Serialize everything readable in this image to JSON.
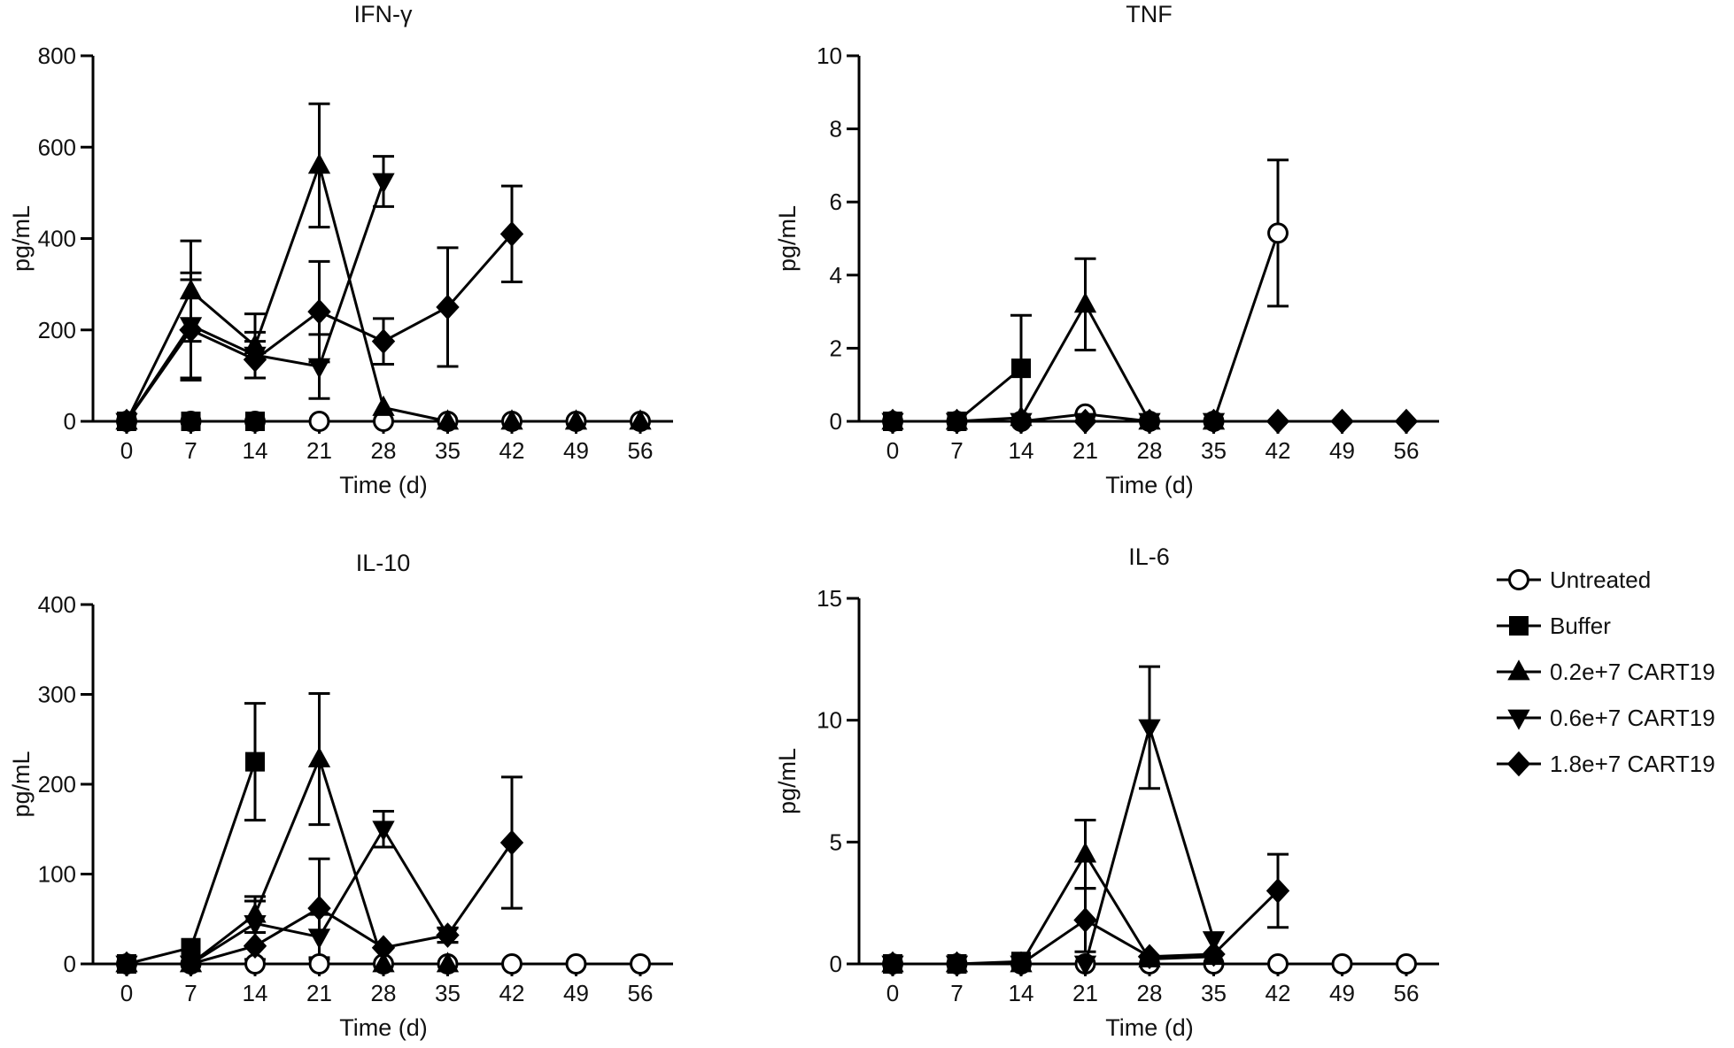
{
  "legend": [
    {
      "name": "Untreated",
      "marker": "circle-open"
    },
    {
      "name": "Buffer",
      "marker": "square"
    },
    {
      "name": "0.2e+7 CART19",
      "marker": "triangle-up"
    },
    {
      "name": "0.6e+7 CART19",
      "marker": "triangle-down"
    },
    {
      "name": "1.8e+7 CART19",
      "marker": "diamond"
    }
  ],
  "chart_data": [
    {
      "type": "line",
      "title": "IFN-γ",
      "xlabel": "Time (d)",
      "ylabel": "pg/mL",
      "xlim": [
        0,
        56
      ],
      "ylim": [
        0,
        800
      ],
      "xticks": [
        0,
        7,
        14,
        21,
        28,
        35,
        42,
        49,
        56
      ],
      "yticks": [
        0,
        200,
        400,
        600,
        800
      ],
      "series": [
        {
          "name": "Untreated",
          "x": [
            0,
            7,
            14,
            21,
            28,
            35,
            42,
            49,
            56
          ],
          "y": [
            0,
            0,
            0,
            0,
            0,
            0,
            0,
            0,
            0
          ]
        },
        {
          "name": "Buffer",
          "x": [
            0,
            7,
            14
          ],
          "y": [
            0,
            0,
            0
          ]
        },
        {
          "name": "0.2e+7 CART19",
          "x": [
            0,
            7,
            14,
            21,
            28,
            35,
            42,
            49,
            56
          ],
          "y": [
            0,
            285,
            165,
            560,
            30,
            0,
            0,
            0,
            0
          ],
          "err": [
            0,
            110,
            70,
            135,
            0,
            0,
            0,
            0,
            0
          ]
        },
        {
          "name": "0.6e+7 CART19",
          "x": [
            0,
            7,
            14,
            21,
            28
          ],
          "y": [
            0,
            210,
            145,
            120,
            525
          ],
          "err": [
            0,
            115,
            50,
            70,
            55
          ]
        },
        {
          "name": "1.8e+7 CART19",
          "x": [
            0,
            7,
            14,
            21,
            28,
            35,
            42
          ],
          "y": [
            0,
            200,
            135,
            240,
            175,
            250,
            410
          ],
          "err": [
            0,
            110,
            40,
            110,
            50,
            130,
            105
          ]
        }
      ]
    },
    {
      "type": "line",
      "title": "TNF",
      "xlabel": "Time (d)",
      "ylabel": "pg/mL",
      "xlim": [
        0,
        56
      ],
      "ylim": [
        0,
        10
      ],
      "xticks": [
        0,
        7,
        14,
        21,
        28,
        35,
        42,
        49,
        56
      ],
      "yticks": [
        0,
        2,
        4,
        6,
        8,
        10
      ],
      "series": [
        {
          "name": "Untreated",
          "x": [
            0,
            7,
            14,
            21,
            28,
            35,
            42
          ],
          "y": [
            0,
            0,
            0,
            0.2,
            0,
            0,
            5.15
          ],
          "err": [
            0,
            0,
            0,
            0,
            0,
            0,
            2
          ]
        },
        {
          "name": "Buffer",
          "x": [
            0,
            7,
            14
          ],
          "y": [
            0,
            0,
            1.45
          ],
          "err": [
            0,
            0,
            1.45
          ]
        },
        {
          "name": "0.2e+7 CART19",
          "x": [
            0,
            7,
            14,
            21,
            28,
            35
          ],
          "y": [
            0,
            0,
            0.1,
            3.2,
            0,
            0
          ],
          "err": [
            0,
            0,
            0,
            1.25,
            0,
            0
          ]
        },
        {
          "name": "0.6e+7 CART19",
          "x": [
            0,
            7,
            14,
            21,
            28,
            35
          ],
          "y": [
            0,
            0,
            0,
            0,
            0,
            0
          ]
        },
        {
          "name": "1.8e+7 CART19",
          "x": [
            0,
            7,
            14,
            21,
            28,
            35,
            42,
            49,
            56
          ],
          "y": [
            0,
            0,
            0,
            0,
            0,
            0,
            0,
            0,
            0
          ]
        }
      ]
    },
    {
      "type": "line",
      "title": "IL-10",
      "xlabel": "Time (d)",
      "ylabel": "pg/mL",
      "xlim": [
        0,
        56
      ],
      "ylim": [
        0,
        400
      ],
      "xticks": [
        0,
        7,
        14,
        21,
        28,
        35,
        42,
        49,
        56
      ],
      "yticks": [
        0,
        100,
        200,
        300,
        400
      ],
      "series": [
        {
          "name": "Untreated",
          "x": [
            0,
            7,
            14,
            21,
            28,
            35,
            42,
            49,
            56
          ],
          "y": [
            0,
            0,
            0,
            0,
            0,
            0,
            0,
            0,
            0
          ]
        },
        {
          "name": "Buffer",
          "x": [
            0,
            7,
            14
          ],
          "y": [
            0,
            18,
            225
          ],
          "err": [
            0,
            0,
            65
          ]
        },
        {
          "name": "0.2e+7 CART19",
          "x": [
            0,
            7,
            14,
            21,
            28,
            35
          ],
          "y": [
            0,
            0,
            55,
            228,
            0,
            0
          ],
          "err": [
            0,
            0,
            20,
            73,
            0,
            0
          ]
        },
        {
          "name": "0.6e+7 CART19",
          "x": [
            0,
            7,
            14,
            21,
            28,
            35
          ],
          "y": [
            0,
            0,
            45,
            30,
            150,
            32
          ],
          "err": [
            0,
            0,
            25,
            25,
            20,
            8
          ]
        },
        {
          "name": "1.8e+7 CART19",
          "x": [
            0,
            7,
            14,
            21,
            28,
            35,
            42
          ],
          "y": [
            0,
            0,
            20,
            62,
            18,
            32,
            135
          ],
          "err": [
            0,
            0,
            15,
            55,
            0,
            8,
            73
          ]
        }
      ]
    },
    {
      "type": "line",
      "title": "IL-6",
      "xlabel": "Time (d)",
      "ylabel": "pg/mL",
      "xlim": [
        0,
        56
      ],
      "ylim": [
        0,
        15
      ],
      "xticks": [
        0,
        7,
        14,
        21,
        28,
        35,
        42,
        49,
        56
      ],
      "yticks": [
        0,
        5,
        10,
        15
      ],
      "series": [
        {
          "name": "Untreated",
          "x": [
            0,
            7,
            14,
            21,
            28,
            35,
            42,
            49,
            56
          ],
          "y": [
            0,
            0,
            0,
            0,
            0,
            0,
            0,
            0,
            0
          ]
        },
        {
          "name": "Buffer",
          "x": [
            0,
            7,
            14
          ],
          "y": [
            0,
            0,
            0.1
          ]
        },
        {
          "name": "0.2e+7 CART19",
          "x": [
            0,
            7,
            14,
            21,
            28,
            35
          ],
          "y": [
            0,
            0,
            0,
            4.5,
            0.2,
            0.3
          ],
          "err": [
            0,
            0,
            0,
            1.4,
            0,
            0
          ]
        },
        {
          "name": "0.6e+7 CART19",
          "x": [
            0,
            7,
            14,
            21,
            28,
            35
          ],
          "y": [
            0,
            0,
            0,
            0,
            9.7,
            1
          ],
          "err": [
            0,
            0,
            0,
            0,
            2.5,
            0
          ]
        },
        {
          "name": "1.8e+7 CART19",
          "x": [
            0,
            7,
            14,
            21,
            28,
            35,
            42
          ],
          "y": [
            0,
            0,
            0,
            1.8,
            0.3,
            0.4,
            3
          ],
          "err": [
            0,
            0,
            0,
            1.3,
            0,
            0,
            1.5
          ]
        }
      ]
    }
  ]
}
